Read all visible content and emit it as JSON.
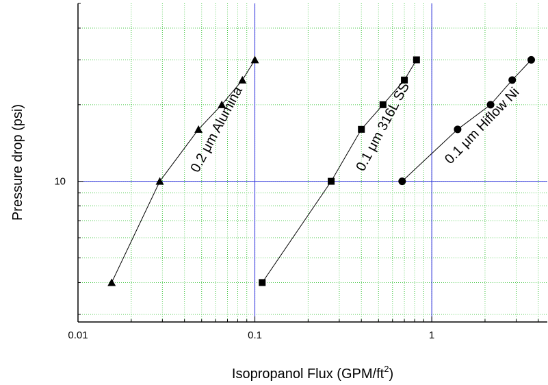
{
  "chart_data": {
    "type": "scatter",
    "xlabel": "Isopropanol Flux (GPM/ft",
    "xlabel_sup": "2",
    "xlabel_end": ")",
    "ylabel": "Pressure drop (psi)",
    "x_scale": "log",
    "y_scale": "log",
    "xlim": [
      0.01,
      4.5
    ],
    "ylim": [
      2.8,
      50
    ],
    "x_ticks": [
      {
        "value": 0.01,
        "label": "0.01"
      },
      {
        "value": 0.1,
        "label": "0.1"
      },
      {
        "value": 1,
        "label": "1"
      }
    ],
    "y_ticks": [
      {
        "value": 10,
        "label": "10"
      }
    ],
    "grid": true,
    "reference_lines": {
      "x": [
        0.1,
        1
      ],
      "y": [
        10
      ]
    },
    "series": [
      {
        "name": "0.2 μm Alumina",
        "marker": "triangle",
        "points": [
          {
            "x": 0.0155,
            "y": 4
          },
          {
            "x": 0.029,
            "y": 10
          },
          {
            "x": 0.048,
            "y": 16
          },
          {
            "x": 0.065,
            "y": 20
          },
          {
            "x": 0.085,
            "y": 25
          },
          {
            "x": 0.1,
            "y": 30
          }
        ]
      },
      {
        "name": "0.1 μm 316L SS",
        "marker": "square",
        "points": [
          {
            "x": 0.11,
            "y": 4
          },
          {
            "x": 0.27,
            "y": 10
          },
          {
            "x": 0.4,
            "y": 16
          },
          {
            "x": 0.53,
            "y": 20
          },
          {
            "x": 0.7,
            "y": 25
          },
          {
            "x": 0.82,
            "y": 30
          }
        ]
      },
      {
        "name": "0.1 μm Hiflow Ni",
        "marker": "circle",
        "points": [
          {
            "x": 0.68,
            "y": 10
          },
          {
            "x": 1.4,
            "y": 16
          },
          {
            "x": 2.15,
            "y": 20
          },
          {
            "x": 2.85,
            "y": 25
          },
          {
            "x": 3.65,
            "y": 30
          }
        ]
      }
    ]
  }
}
